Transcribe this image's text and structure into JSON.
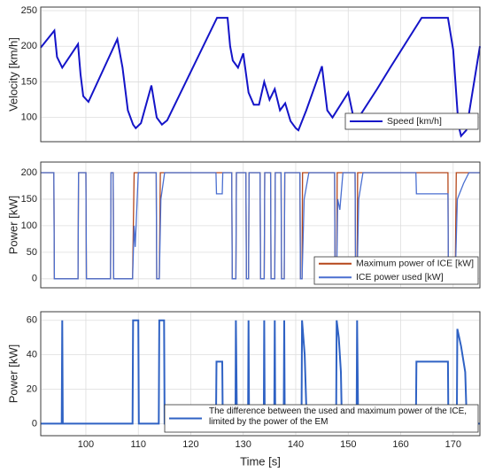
{
  "chart_data": [
    {
      "type": "line",
      "ylabel": "Velocity [km/h]",
      "xlim": [
        91.4,
        175.1
      ],
      "ylim": [
        66,
        255
      ],
      "yticks": [
        100,
        150,
        200,
        250
      ],
      "grid": true,
      "legend": "lower right",
      "series": [
        {
          "name": "Speed [km/h]",
          "color": "#1414c8",
          "x": [
            91.4,
            94,
            94.5,
            95.5,
            98.5,
            99,
            99.5,
            100.5,
            106,
            107,
            108,
            109,
            109.5,
            110.5,
            112.5,
            113.5,
            114.5,
            115.5,
            125,
            127,
            127.5,
            128,
            129,
            130,
            131,
            132,
            133,
            134,
            135,
            136,
            137,
            138,
            139,
            140,
            140.5,
            142,
            145,
            146,
            147,
            147.7,
            150,
            151,
            152,
            155.5,
            158,
            164,
            169,
            170,
            171,
            171.5,
            172.5,
            175.1
          ],
          "values": [
            198,
            222,
            185,
            170,
            203,
            160,
            130,
            122,
            210,
            170,
            110,
            90,
            85,
            92,
            145,
            100,
            90,
            96,
            240,
            240,
            200,
            180,
            170,
            190,
            135,
            118,
            118,
            150,
            125,
            140,
            110,
            120,
            95,
            85,
            82,
            110,
            172,
            110,
            100,
            108,
            135,
            100,
            100,
            140,
            170,
            240,
            240,
            195,
            90,
            74,
            82,
            200
          ]
        }
      ]
    },
    {
      "type": "line",
      "ylabel": "Power [kW]",
      "xlim": [
        91.4,
        175.1
      ],
      "ylim": [
        -17,
        220
      ],
      "yticks": [
        0,
        50,
        100,
        150,
        200
      ],
      "grid": true,
      "legend": "lower right",
      "series": [
        {
          "name": "Maximum power of ICE [kW]",
          "color": "#b5471a",
          "x": [
            91.4,
            93.9,
            94,
            98.5,
            98.6,
            100,
            100.1,
            104.7,
            104.8,
            105.2,
            105.3,
            108.9,
            109.2,
            113.4,
            113.5,
            114,
            114.2,
            127.8,
            127.9,
            128.6,
            128.7,
            130.5,
            130.6,
            131,
            131.1,
            133.2,
            133.3,
            134,
            134.1,
            135.2,
            135.3,
            136,
            136.1,
            137.2,
            137.3,
            137.8,
            137.9,
            140.8,
            140.9,
            141.2,
            141.3,
            147.4,
            147.5,
            147.8,
            147.9,
            151.3,
            151.4,
            151.7,
            151.8,
            169,
            169.1,
            170.4,
            170.6,
            175.1
          ],
          "values": [
            200,
            200,
            0,
            0,
            200,
            200,
            0,
            0,
            200,
            200,
            0,
            0,
            200,
            200,
            0,
            0,
            200,
            200,
            0,
            0,
            200,
            200,
            0,
            0,
            200,
            200,
            0,
            0,
            200,
            200,
            0,
            0,
            200,
            200,
            0,
            0,
            200,
            200,
            0,
            0,
            200,
            200,
            0,
            0,
            200,
            200,
            0,
            0,
            200,
            200,
            0,
            0,
            200,
            200
          ]
        },
        {
          "name": "ICE power used [kW]",
          "color": "#4a6fd0",
          "x": [
            91.4,
            93.9,
            94,
            98.5,
            98.6,
            100,
            100.1,
            104.7,
            104.8,
            105.2,
            105.3,
            108.9,
            109.2,
            109.4,
            110,
            113.4,
            113.5,
            114,
            114.3,
            115,
            124.8,
            124.9,
            126,
            126.1,
            127.8,
            127.9,
            128.6,
            128.7,
            130.5,
            130.6,
            131,
            131.1,
            133.2,
            133.3,
            134,
            134.1,
            135.2,
            135.3,
            136,
            136.1,
            137.2,
            137.3,
            137.8,
            137.9,
            140.8,
            140.9,
            141.2,
            141.6,
            142.5,
            147.4,
            147.5,
            147.8,
            148,
            148.4,
            149,
            151.3,
            151.4,
            151.7,
            152,
            152.8,
            162.9,
            163,
            169,
            169.1,
            170.4,
            170.8,
            172,
            173,
            175.1
          ],
          "values": [
            200,
            200,
            0,
            0,
            200,
            200,
            0,
            0,
            200,
            200,
            0,
            0,
            100,
            60,
            200,
            200,
            0,
            0,
            150,
            200,
            200,
            160,
            160,
            200,
            200,
            0,
            0,
            200,
            200,
            0,
            0,
            200,
            200,
            0,
            0,
            200,
            200,
            0,
            0,
            200,
            200,
            0,
            0,
            200,
            200,
            0,
            0,
            150,
            200,
            200,
            0,
            0,
            150,
            130,
            200,
            200,
            0,
            0,
            150,
            200,
            200,
            160,
            160,
            0,
            0,
            150,
            180,
            200,
            200
          ]
        }
      ]
    },
    {
      "type": "line",
      "ylabel": "Power [kW]",
      "xlabel": "Time [s]",
      "xlim": [
        91.4,
        175.1
      ],
      "ylim": [
        -7,
        65
      ],
      "xticks": [
        100,
        110,
        120,
        130,
        140,
        150,
        160,
        170
      ],
      "yticks": [
        0,
        20,
        40,
        60
      ],
      "grid": true,
      "legend": "lower right",
      "series": [
        {
          "name": "The difference between the used and maximum power of the ICE, limited by the power of the EM",
          "color": "#2f62c4",
          "x": [
            91.4,
            95.4,
            95.5,
            95.6,
            108.9,
            109,
            110,
            110.1,
            113.9,
            114,
            114.9,
            115,
            124.8,
            124.9,
            126,
            126.1,
            128.5,
            128.6,
            128.8,
            130.9,
            131,
            131.1,
            133.9,
            134,
            134.1,
            135.9,
            136,
            136.1,
            137.7,
            137.8,
            137.9,
            141.1,
            141.2,
            141.7,
            142,
            142.1,
            147.7,
            147.8,
            148.2,
            148.6,
            148.8,
            151.6,
            151.7,
            151.9,
            162.9,
            163,
            169,
            169.1,
            170.7,
            170.8,
            171.5,
            172.3,
            172.6,
            175.1
          ],
          "values": [
            0,
            0,
            60,
            0,
            0,
            60,
            60,
            0,
            0,
            60,
            60,
            0,
            0,
            36,
            36,
            0,
            0,
            60,
            0,
            0,
            60,
            0,
            0,
            60,
            0,
            0,
            60,
            0,
            0,
            60,
            0,
            0,
            60,
            40,
            10,
            0,
            0,
            60,
            50,
            30,
            0,
            0,
            60,
            0,
            0,
            36,
            36,
            0,
            0,
            55,
            45,
            30,
            0,
            0
          ]
        }
      ]
    }
  ]
}
